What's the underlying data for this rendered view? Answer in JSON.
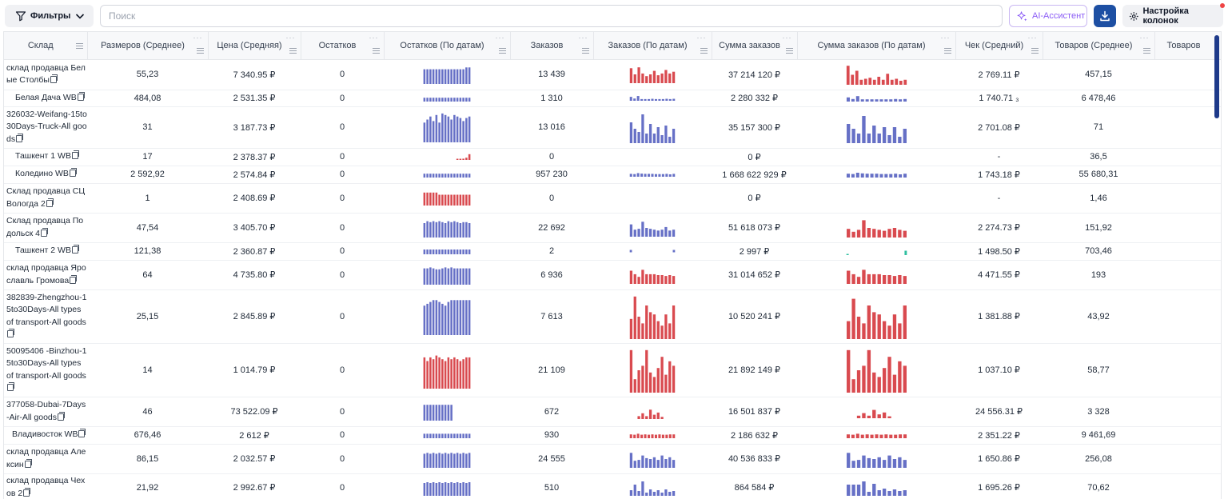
{
  "toolbar": {
    "filters_label": "Фильтры",
    "search_placeholder": "Поиск",
    "search_value": "",
    "ai_label": "AI-Ассистент",
    "columns_label": "Настройка колонок"
  },
  "colors": {
    "blue_bar": "#6670c6",
    "red_bar": "#d94a4f",
    "teal_bar": "#2fbfa0",
    "header_bg": "#f7f8fa",
    "primary": "#1d4fa3",
    "ai_accent": "#8b5cf6"
  },
  "columns": [
    {
      "label": "Склад"
    },
    {
      "label": "Размеров (Среднее)"
    },
    {
      "label": "Цена (Средняя)"
    },
    {
      "label": "Остатков"
    },
    {
      "label": "Остатков (По датам)"
    },
    {
      "label": "Заказов"
    },
    {
      "label": "Заказов (По датам)"
    },
    {
      "label": "Сумма заказов"
    },
    {
      "label": "Сумма заказов (По датам)"
    },
    {
      "label": "Чек (Средний)"
    },
    {
      "label": "Товаров (Среднее)"
    },
    {
      "label": "Товаров"
    }
  ],
  "rows": [
    {
      "warehouse": "склад продавца Белые Столбы",
      "sizes": "55,23",
      "price": "7 340.95 ₽",
      "stock": "0",
      "orders": "13 439",
      "sum": "37 214 120 ₽",
      "check": "2 769.11 ₽",
      "goods": "457,15",
      "stock_trend": {
        "color": "blue",
        "values": [
          80,
          80,
          80,
          80,
          80,
          80,
          80,
          80,
          80,
          80,
          80,
          80,
          80,
          80,
          90,
          90
        ]
      },
      "orders_trend": {
        "color": "red",
        "values": [
          85,
          50,
          90,
          55,
          40,
          50,
          70,
          45,
          55,
          75,
          55,
          65
        ]
      },
      "sum_trend": {
        "color": "red",
        "values": [
          95,
          50,
          70,
          25,
          30,
          35,
          25,
          40,
          25,
          55,
          25,
          30,
          20,
          25
        ]
      }
    },
    {
      "warehouse": "Белая Дача WB",
      "sizes": "484,08",
      "price": "2 531.35 ₽",
      "stock": "0",
      "orders": "1 310",
      "sum": "2 280 332 ₽",
      "check": "1 740.71 ₃",
      "goods": "6 478,46",
      "stock_trend": {
        "color": "blue",
        "values": [
          60,
          60,
          60,
          60,
          60,
          60,
          60,
          60,
          60,
          60,
          60,
          60,
          60,
          60,
          60,
          60
        ]
      },
      "orders_trend": {
        "color": "blue",
        "values": [
          70,
          40,
          85,
          30,
          30,
          30,
          35,
          30,
          30,
          30,
          35,
          30,
          35
        ]
      },
      "sum_trend": {
        "color": "blue",
        "values": [
          65,
          40,
          85,
          35,
          35,
          35,
          35,
          35,
          35,
          35,
          40,
          35,
          40
        ]
      }
    },
    {
      "warehouse": "326032-Weifang-15to30Days-Truck-All goods",
      "sizes": "31",
      "price": "3 187.73 ₽",
      "stock": "0",
      "orders": "13 016",
      "sum": "35 157 300 ₽",
      "check": "2 701.08 ₽",
      "goods": "71",
      "stock_trend": {
        "color": "blue",
        "values": [
          65,
          75,
          85,
          70,
          90,
          65,
          95,
          90,
          85,
          75,
          90,
          85,
          80,
          70,
          80,
          85
        ]
      },
      "orders_trend": {
        "color": "blue",
        "values": [
          65,
          45,
          35,
          90,
          30,
          60,
          30,
          50,
          25,
          55,
          20,
          45
        ]
      },
      "sum_trend": {
        "color": "blue",
        "values": [
          60,
          45,
          30,
          85,
          30,
          55,
          30,
          50,
          25,
          50,
          20,
          45
        ]
      }
    },
    {
      "warehouse": "Ташкент 1 WB",
      "sizes": "17",
      "price": "2 378.37 ₽",
      "stock": "0",
      "orders": "0",
      "sum": "0 ₽",
      "check": "-",
      "goods": "36,5",
      "stock_trend": {
        "color": "red",
        "values": [
          0,
          0,
          0,
          0,
          0,
          0,
          0,
          0,
          0,
          0,
          0,
          10,
          15,
          20,
          35,
          90
        ]
      },
      "orders_trend": {
        "color": "none",
        "values": []
      },
      "sum_trend": {
        "color": "none",
        "values": []
      }
    },
    {
      "warehouse": "Коледино WB",
      "sizes": "2 592,92",
      "price": "2 574.84 ₽",
      "stock": "0",
      "orders": "957 230",
      "sum": "1 668 622 929 ₽",
      "check": "1 743.18 ₽",
      "goods": "55 680,31",
      "stock_trend": {
        "color": "blue",
        "values": [
          60,
          60,
          60,
          60,
          60,
          60,
          60,
          60,
          60,
          60,
          60,
          60,
          60,
          60,
          60,
          60
        ]
      },
      "orders_trend": {
        "color": "blue",
        "values": [
          60,
          55,
          75,
          65,
          60,
          60,
          60,
          55,
          55,
          55,
          60,
          50,
          60
        ]
      },
      "sum_trend": {
        "color": "blue",
        "values": [
          60,
          55,
          75,
          65,
          60,
          60,
          60,
          55,
          55,
          55,
          60,
          50,
          60
        ]
      }
    },
    {
      "warehouse": "Склад продавца СЦ Вологда 2",
      "sizes": "1",
      "price": "2 408.69 ₽",
      "stock": "0",
      "orders": "0",
      "sum": "0 ₽",
      "check": "-",
      "goods": "1,46",
      "stock_trend": {
        "color": "red",
        "values": [
          90,
          90,
          90,
          90,
          90,
          75,
          75,
          75,
          75,
          75,
          75,
          75,
          75,
          75,
          75,
          75
        ]
      },
      "orders_trend": {
        "color": "none",
        "values": []
      },
      "sum_trend": {
        "color": "none",
        "values": []
      }
    },
    {
      "warehouse": "Склад продавца Подольск 4",
      "sizes": "47,54",
      "price": "3 405.70 ₽",
      "stock": "0",
      "orders": "22 692",
      "sum": "51 618 073 ₽",
      "check": "2 274.73 ₽",
      "goods": "151,92",
      "stock_trend": {
        "color": "blue",
        "values": [
          75,
          85,
          80,
          85,
          80,
          85,
          80,
          75,
          85,
          80,
          85,
          80,
          75,
          80,
          80,
          75
        ]
      },
      "orders_trend": {
        "color": "blue",
        "values": [
          70,
          40,
          45,
          85,
          50,
          45,
          40,
          35,
          40,
          55,
          35,
          40
        ]
      },
      "sum_trend": {
        "color": "red",
        "values": [
          45,
          30,
          40,
          90,
          50,
          45,
          40,
          35,
          45,
          50,
          40,
          35
        ]
      }
    },
    {
      "warehouse": "Ташкент 2 WB",
      "sizes": "121,38",
      "price": "2 360.87 ₽",
      "stock": "0",
      "orders": "2",
      "sum": "2 997 ₽",
      "check": "1 498.50 ₽",
      "goods": "703,46",
      "stock_trend": {
        "color": "blue",
        "values": [
          75,
          75,
          75,
          75,
          75,
          75,
          75,
          75,
          75,
          75,
          75,
          75,
          75,
          75,
          75,
          75
        ]
      },
      "orders_trend": {
        "color": "dots",
        "values": [
          25,
          0,
          0,
          0,
          0,
          0,
          0,
          0,
          0,
          0,
          0,
          0,
          0,
          25
        ]
      },
      "sum_trend": {
        "color": "teal",
        "values": [
          8,
          0,
          0,
          0,
          0,
          0,
          0,
          0,
          0,
          0,
          0,
          0,
          0,
          0,
          0,
          0,
          0,
          55
        ]
      }
    },
    {
      "warehouse": "склад продавца Ярославль Громова",
      "sizes": "64",
      "price": "4 735.80 ₽",
      "stock": "0",
      "orders": "6 936",
      "sum": "31 014 652 ₽",
      "check": "4 471.55 ₽",
      "goods": "193",
      "stock_trend": {
        "color": "blue",
        "values": [
          85,
          85,
          90,
          85,
          80,
          80,
          85,
          90,
          85,
          90,
          85,
          85,
          85,
          85,
          85,
          85
        ]
      },
      "orders_trend": {
        "color": "red",
        "values": [
          75,
          55,
          40,
          80,
          55,
          55,
          55,
          50,
          50,
          45,
          50,
          45
        ]
      },
      "sum_trend": {
        "color": "red",
        "values": [
          75,
          55,
          40,
          80,
          55,
          55,
          55,
          50,
          50,
          45,
          50,
          45
        ]
      }
    },
    {
      "warehouse": "382839-Zhengzhou-15to30Days-All types of transport-All goods",
      "sizes": "25,15",
      "price": "2 845.89 ₽",
      "stock": "0",
      "orders": "7 613",
      "sum": "10 520 241 ₽",
      "check": "1 381.88 ₽",
      "goods": "43,92",
      "stock_trend": {
        "color": "blue",
        "values": [
          80,
          85,
          90,
          95,
          95,
          90,
          85,
          80,
          90,
          95,
          95,
          95,
          95,
          95,
          95,
          95
        ]
      },
      "orders_trend": {
        "color": "red",
        "values": [
          45,
          95,
          50,
          35,
          75,
          60,
          55,
          40,
          30,
          55,
          35,
          75
        ]
      },
      "sum_trend": {
        "color": "red",
        "values": [
          40,
          90,
          50,
          35,
          75,
          60,
          55,
          40,
          30,
          55,
          35,
          75
        ]
      }
    },
    {
      "warehouse": "50095406 -Binzhou-15to30Days-All types of transport-All goods",
      "sizes": "14",
      "price": "1 014.79 ₽",
      "stock": "0",
      "orders": "21 109",
      "sum": "21 892 149 ₽",
      "check": "1 037.10 ₽",
      "goods": "58,77",
      "stock_trend": {
        "color": "red",
        "values": [
          85,
          75,
          85,
          80,
          90,
          85,
          80,
          75,
          85,
          80,
          85,
          80,
          75,
          80,
          85,
          85
        ]
      },
      "orders_trend": {
        "color": "red",
        "values": [
          95,
          30,
          50,
          60,
          95,
          45,
          35,
          55,
          80,
          40,
          70,
          60
        ]
      },
      "sum_trend": {
        "color": "red",
        "values": [
          95,
          30,
          50,
          60,
          95,
          45,
          35,
          55,
          80,
          40,
          70,
          60
        ]
      }
    },
    {
      "warehouse": "377058-Dubai-7Days-Air-All goods",
      "sizes": "46",
      "price": "73 522.09 ₽",
      "stock": "0",
      "orders": "672",
      "sum": "16 501 837 ₽",
      "check": "24 556.31 ₽",
      "goods": "3 328",
      "stock_trend": {
        "color": "blue",
        "values": [
          90,
          90,
          90,
          90,
          90,
          90,
          90,
          90,
          90,
          90,
          0,
          0,
          0,
          0,
          0,
          0
        ]
      },
      "orders_trend": {
        "color": "red",
        "values": [
          0,
          0,
          20,
          40,
          20,
          65,
          30,
          45,
          15,
          0,
          0,
          0
        ]
      },
      "sum_trend": {
        "color": "red",
        "values": [
          0,
          0,
          20,
          40,
          20,
          65,
          30,
          45,
          15,
          0,
          0,
          0
        ]
      }
    },
    {
      "warehouse": "Владивосток WB",
      "sizes": "676,46",
      "price": "2 612 ₽",
      "stock": "0",
      "orders": "930",
      "sum": "2 186 632 ₽",
      "check": "2 351.22 ₽",
      "goods": "9 461,69",
      "stock_trend": {
        "color": "blue",
        "values": [
          70,
          70,
          70,
          70,
          70,
          70,
          70,
          70,
          70,
          70,
          70,
          70,
          70,
          70,
          70,
          70
        ]
      },
      "orders_trend": {
        "color": "red",
        "values": [
          60,
          55,
          70,
          55,
          60,
          55,
          60,
          55,
          60,
          55,
          55,
          60,
          60
        ]
      },
      "sum_trend": {
        "color": "red",
        "values": [
          60,
          55,
          70,
          55,
          60,
          55,
          60,
          55,
          60,
          55,
          55,
          60,
          60
        ]
      }
    },
    {
      "warehouse": "склад продавца Алексин",
      "sizes": "86,15",
      "price": "2 032.57 ₽",
      "stock": "0",
      "orders": "24 555",
      "sum": "40 536 833 ₽",
      "check": "1 650.86 ₽",
      "goods": "256,08",
      "stock_trend": {
        "color": "blue",
        "values": [
          80,
          85,
          80,
          85,
          80,
          85,
          80,
          85,
          80,
          85,
          80,
          85,
          80,
          85,
          80,
          85
        ]
      },
      "orders_trend": {
        "color": "blue",
        "values": [
          85,
          40,
          45,
          70,
          55,
          50,
          60,
          45,
          70,
          50,
          60,
          45
        ]
      },
      "sum_trend": {
        "color": "blue",
        "values": [
          85,
          40,
          45,
          70,
          55,
          50,
          60,
          45,
          70,
          50,
          60,
          45
        ]
      }
    },
    {
      "warehouse": "склад продавца Чехов 2",
      "sizes": "21,92",
      "price": "2 992.67 ₽",
      "stock": "0",
      "orders": "510",
      "sum": "864 584 ₽",
      "check": "1 695.26 ₽",
      "goods": "70,62",
      "stock_trend": {
        "color": "blue",
        "values": [
          80,
          85,
          80,
          85,
          80,
          85,
          80,
          85,
          80,
          85,
          80,
          85,
          80,
          85,
          80,
          85
        ]
      },
      "orders_trend": {
        "color": "blue",
        "values": [
          35,
          70,
          30,
          90,
          20,
          40,
          25,
          35,
          20,
          40,
          25,
          30
        ]
      },
      "sum_trend": {
        "color": "blue",
        "values": [
          70,
          70,
          70,
          90,
          25,
          75,
          35,
          45,
          30,
          40,
          30,
          35
        ]
      }
    }
  ]
}
